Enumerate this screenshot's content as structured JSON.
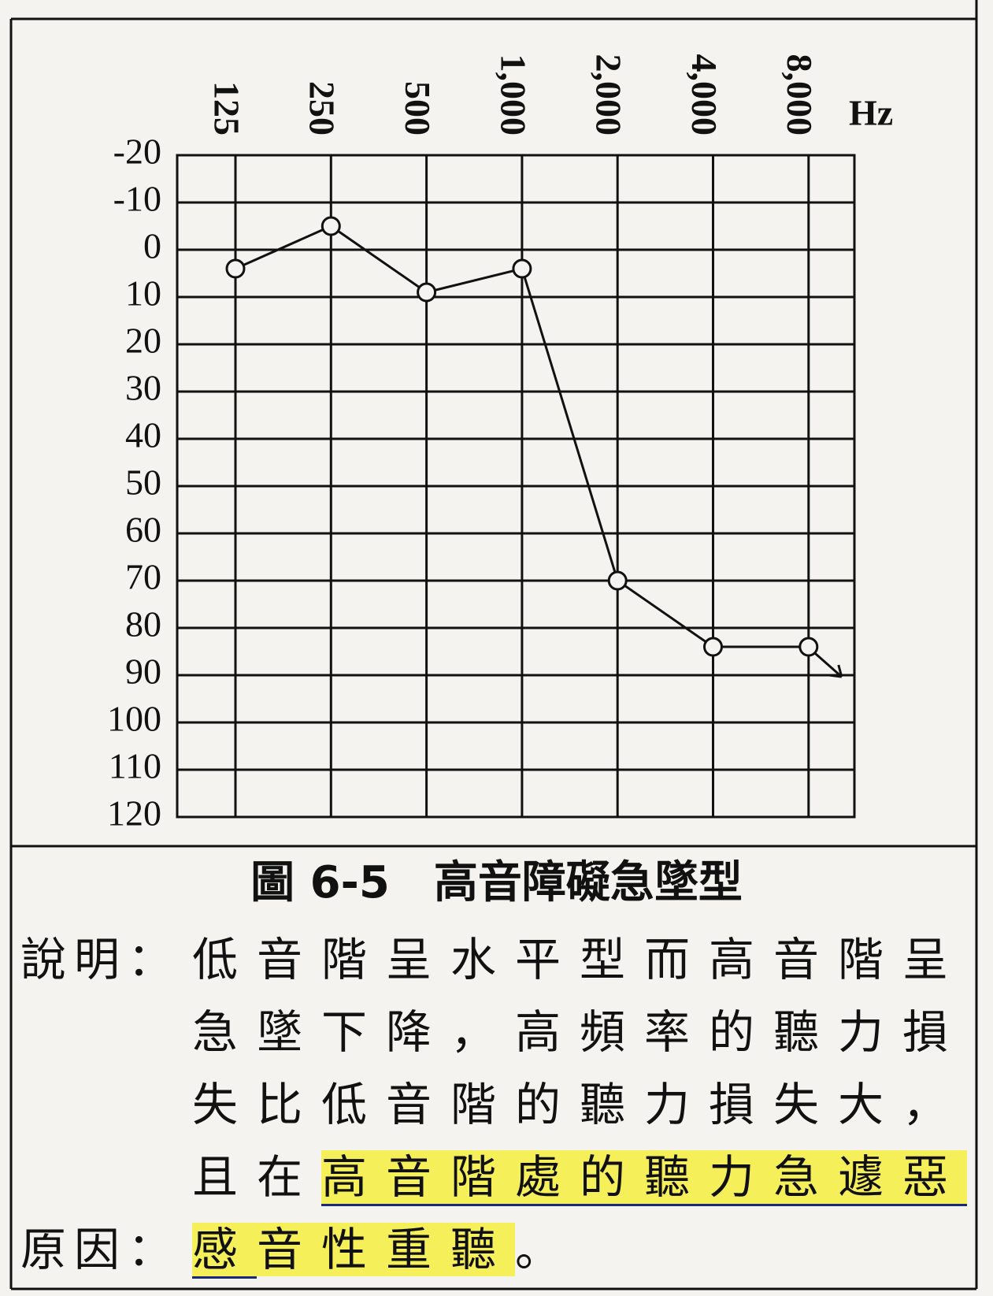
{
  "chart_data": {
    "type": "line",
    "categories": [
      "125",
      "250",
      "500",
      "1,000",
      "2,000",
      "4,000",
      "8,000"
    ],
    "x_unit": "Hz",
    "series": [
      {
        "color": "#111111",
        "values": [
          4,
          -5,
          9,
          4,
          70,
          84,
          84
        ]
      }
    ],
    "ylim": [
      -20,
      120
    ],
    "y_reversed": true,
    "yticks": [
      -20,
      -10,
      0,
      10,
      20,
      30,
      40,
      50,
      60,
      70,
      80,
      90,
      100,
      110,
      120
    ],
    "grid": true
  },
  "caption": "圖 6-5　高音障礙急墜型",
  "description_label": "說明：",
  "description": [
    "低音階呈水平型而高音階呈急墜下降，高頻率的聽力損失比低音階的聽力損失大，且在",
    "高音階處的聽力急遽惡化",
    "。"
  ],
  "reason_label": "原因：",
  "reason": [
    "感音性重聽",
    "。"
  ]
}
